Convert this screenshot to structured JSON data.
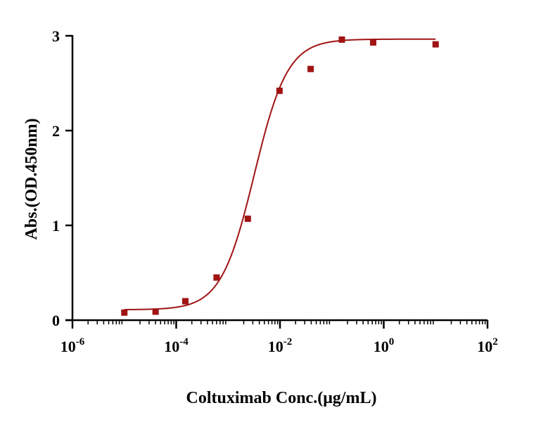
{
  "chart_data": {
    "type": "scatter",
    "title": "",
    "xlabel": "Coltuximab Conc.(μg/mL)",
    "ylabel": "Abs.(OD.450nm)",
    "x_scale": "log",
    "xlim": [
      1e-06,
      100
    ],
    "ylim": [
      0,
      3
    ],
    "x_ticks": [
      {
        "value": 1e-06,
        "base": "10",
        "exp": "-6"
      },
      {
        "value": 0.0001,
        "base": "10",
        "exp": "-4"
      },
      {
        "value": 0.01,
        "base": "10",
        "exp": "-2"
      },
      {
        "value": 1,
        "base": "10",
        "exp": "0"
      },
      {
        "value": 100,
        "base": "10",
        "exp": "2"
      }
    ],
    "y_ticks": [
      0,
      1,
      2,
      3
    ],
    "grid": false,
    "colors": {
      "marker": "#a01414",
      "curve": "#a01414",
      "axis": "#000000"
    },
    "series": [
      {
        "x": [
          1e-05,
          4e-05,
          0.00015,
          0.0006,
          0.0024,
          0.0098,
          0.039,
          0.156,
          0.625,
          10
        ],
        "y": [
          0.08,
          0.09,
          0.2,
          0.45,
          1.07,
          2.42,
          2.65,
          2.96,
          2.93,
          2.91
        ]
      }
    ],
    "fit": {
      "model": "4PL",
      "x_range": [
        1e-05,
        10
      ],
      "bottom": 0.11,
      "top": 2.965,
      "ec50": 0.0032,
      "hill": 1.35
    }
  }
}
